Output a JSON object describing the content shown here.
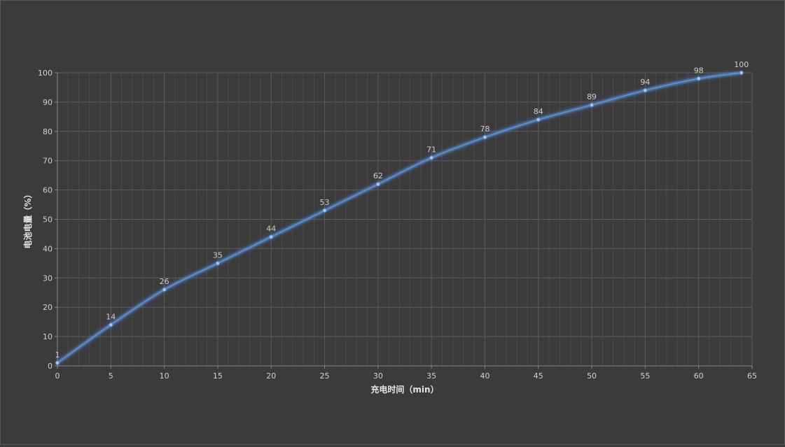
{
  "chart_data": {
    "type": "line",
    "title": "",
    "xlabel": "充电时间（min）",
    "ylabel": "电池电量（%）",
    "x": [
      0,
      5,
      10,
      15,
      20,
      25,
      30,
      35,
      40,
      45,
      50,
      55,
      60,
      64
    ],
    "series": [
      {
        "values": [
          1,
          14,
          26,
          35,
          44,
          53,
          62,
          71,
          78,
          84,
          89,
          94,
          98,
          100
        ],
        "color": "#5a8fd8"
      }
    ],
    "xlim": [
      0,
      65
    ],
    "ylim": [
      0,
      100
    ],
    "x_ticks": [
      0,
      5,
      10,
      15,
      20,
      25,
      30,
      35,
      40,
      45,
      50,
      55,
      60,
      65
    ],
    "y_ticks": [
      0,
      10,
      20,
      30,
      40,
      50,
      60,
      70,
      80,
      90,
      100
    ],
    "grid": true,
    "data_labels": true,
    "colors": {
      "background": "#3b3b3b",
      "grid_major": "#5c5c5c",
      "grid_minor": "#4a4a4a",
      "line": "#5a8fd8",
      "point": "#a9c8f0"
    }
  }
}
